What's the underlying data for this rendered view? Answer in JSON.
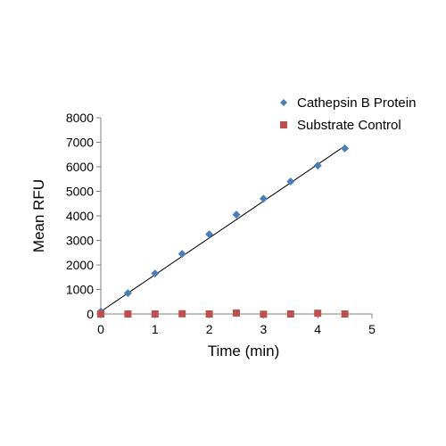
{
  "chart_data": {
    "type": "scatter",
    "title": "",
    "xlabel": "Time (min)",
    "ylabel": "Mean RFU",
    "xlim": [
      0,
      5
    ],
    "ylim": [
      0,
      8000
    ],
    "x_ticks": [
      "0",
      "1",
      "2",
      "3",
      "4",
      "5"
    ],
    "y_ticks": [
      "0",
      "1000",
      "2000",
      "3000",
      "4000",
      "5000",
      "6000",
      "7000",
      "8000"
    ],
    "grid": false,
    "legend_position": "top-right",
    "series": [
      {
        "name": "Cathepsin B Protein",
        "marker": "diamond",
        "color": "#4a7ebb",
        "x": [
          0,
          0.5,
          1,
          1.5,
          2,
          2.5,
          3,
          3.5,
          4,
          4.5
        ],
        "y": [
          100,
          850,
          1650,
          2450,
          3250,
          4050,
          4700,
          5400,
          6050,
          6750
        ]
      },
      {
        "name": "Substrate Control",
        "marker": "square",
        "color": "#c0504d",
        "x": [
          0,
          0.5,
          1,
          1.5,
          2,
          2.5,
          3,
          3.5,
          4,
          4.5
        ],
        "y": [
          0,
          0,
          0,
          10,
          0,
          40,
          -10,
          0,
          30,
          0
        ]
      }
    ],
    "trendline": {
      "series": "Cathepsin B Protein",
      "color": "#000000",
      "x": [
        0,
        4.5
      ],
      "y": [
        100,
        6850
      ]
    }
  }
}
